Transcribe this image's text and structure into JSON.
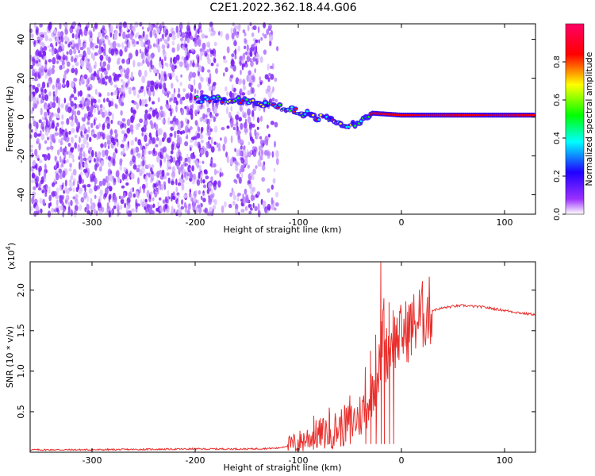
{
  "figure": {
    "title": "C2E1.2022.362.18.44.G06"
  },
  "chart_data": [
    {
      "type": "heatmap",
      "title": "C2E1.2022.362.18.44.G06",
      "xlabel": "Height of straight line (km)",
      "ylabel": "Frequency (Hz)",
      "xlim": [
        -360,
        130
      ],
      "ylim": [
        -50,
        48
      ],
      "xticks": [
        -300,
        -200,
        -100,
        0,
        100
      ],
      "yticks": [
        -40,
        -20,
        0,
        20,
        40
      ],
      "colorbar": {
        "label": "Normalized spectral amplitude",
        "range": [
          0.0,
          1.0
        ],
        "ticks": [
          "0.0",
          "0.2",
          "0.4",
          "0.6",
          "0.8"
        ],
        "colormap": [
          "#ffffff",
          "#9b30ff",
          "#2000ff",
          "#00ffff",
          "#00ff00",
          "#ffff00",
          "#ff0000",
          "#ff0066"
        ]
      },
      "features": [
        {
          "name": "noise",
          "x_range": [
            -360,
            -120
          ],
          "y_range": [
            -50,
            48
          ],
          "amplitude": [
            0.05,
            0.25
          ]
        },
        {
          "name": "signal_track",
          "points": [
            [
              -200,
              9
            ],
            [
              -170,
              9
            ],
            [
              -150,
              8
            ],
            [
              -130,
              6
            ],
            [
              -110,
              4
            ],
            [
              -95,
              2
            ],
            [
              -80,
              0
            ],
            [
              -65,
              -2
            ],
            [
              -55,
              -4
            ],
            [
              -45,
              -3
            ],
            [
              -35,
              0
            ],
            [
              -28,
              2
            ],
            [
              0,
              1
            ],
            [
              50,
              1
            ],
            [
              90,
              1
            ],
            [
              130,
              1
            ]
          ],
          "amplitude": [
            0.2,
            0.9
          ]
        }
      ]
    },
    {
      "type": "line",
      "xlabel": "Height of straight line (km)",
      "ylabel": "SNR (10 * v/v)",
      "yscale_label": "(x10",
      "yscale_exp": "4",
      "yscale_close": ")",
      "color": "#e8302d",
      "xlim": [
        -360,
        130
      ],
      "ylim": [
        0,
        2.35
      ],
      "xticks": [
        -300,
        -200,
        -100,
        0,
        100
      ],
      "yticks": [
        "0.5",
        "1.0",
        "1.5",
        "2.0"
      ],
      "series": [
        {
          "x": [
            -360,
            -300,
            -200,
            -150,
            -120,
            -110,
            -100,
            -90,
            -80,
            -70,
            -60,
            -50,
            -45,
            -40,
            -35,
            -30,
            -25,
            -20,
            -18,
            -15,
            -12,
            -10,
            -5,
            0,
            5,
            10,
            15,
            20,
            25,
            30,
            40,
            50,
            60,
            70,
            80,
            90,
            100,
            110,
            120,
            130
          ],
          "y": [
            0.03,
            0.03,
            0.04,
            0.04,
            0.05,
            0.08,
            0.12,
            0.18,
            0.22,
            0.25,
            0.3,
            0.35,
            0.4,
            0.45,
            0.55,
            0.7,
            0.9,
            1.1,
            1.6,
            1.2,
            1.3,
            1.35,
            1.4,
            1.45,
            1.5,
            1.55,
            1.62,
            1.68,
            1.72,
            1.75,
            1.78,
            1.8,
            1.81,
            1.8,
            1.79,
            1.77,
            1.75,
            1.73,
            1.71,
            1.7
          ]
        }
      ],
      "spikes": [
        [
          -20,
          2.35
        ],
        [
          -17,
          1.9
        ],
        [
          -12,
          1.85
        ],
        [
          -8,
          1.75
        ],
        [
          -25,
          1.45
        ],
        [
          -30,
          1.25
        ],
        [
          -35,
          1.05
        ],
        [
          -50,
          0.7
        ],
        [
          -70,
          0.55
        ],
        [
          -85,
          0.45
        ]
      ]
    }
  ]
}
